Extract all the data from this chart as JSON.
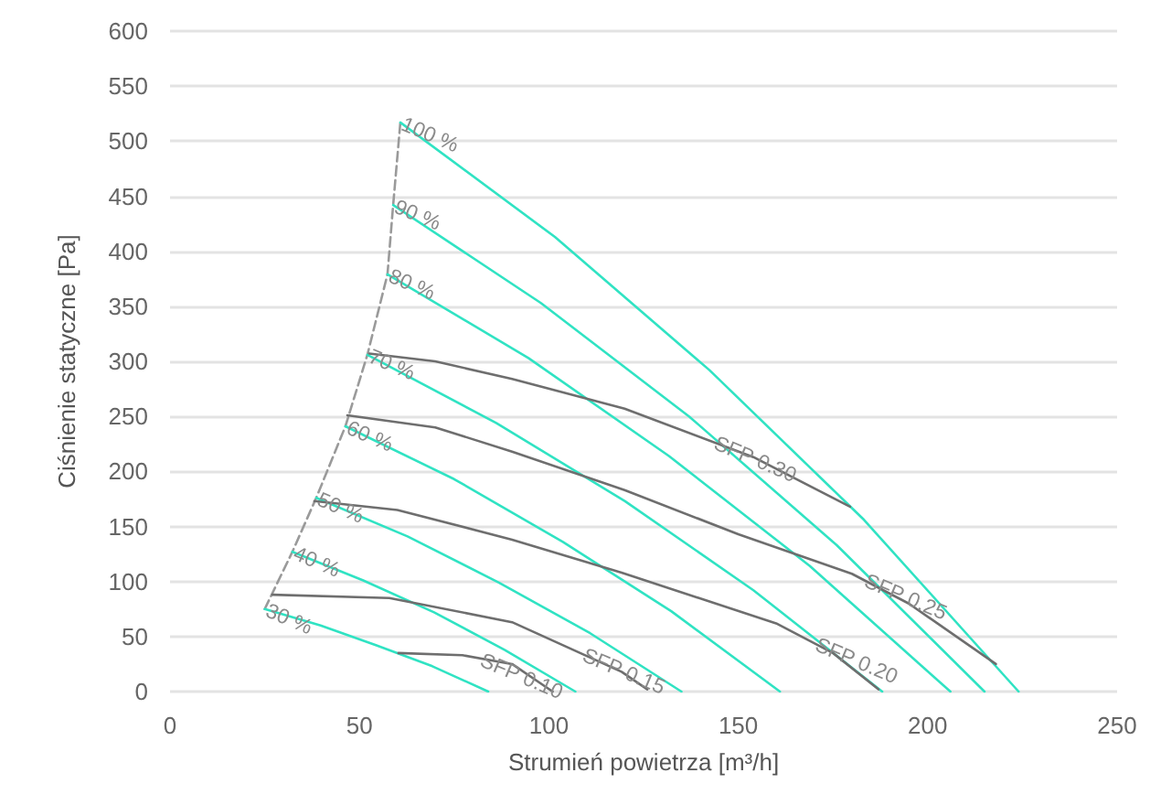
{
  "chart_data": {
    "type": "line",
    "xlabel": "Strumień powietrza [m³/h]",
    "ylabel": "Ciśnienie statyczne [Pa]",
    "xlim": [
      0,
      250
    ],
    "xticks": [
      0,
      50,
      100,
      150,
      200,
      250
    ],
    "ylim": [
      0,
      600
    ],
    "yticks": [
      0,
      50,
      100,
      150,
      200,
      250,
      300,
      350,
      400,
      450,
      500,
      550,
      600
    ],
    "grid": "y",
    "marker": "none",
    "series": [
      {
        "color": "#9a9a9a",
        "line_style": "dashed",
        "x": [
          25,
          32.3,
          38.6,
          46.3,
          52.1,
          57.4,
          58.9,
          60.8
        ],
        "values": [
          75,
          127,
          176,
          241,
          306,
          379,
          442,
          517
        ]
      },
      {
        "color": "#30e3c3",
        "x": [
          25,
          39.75,
          54.5,
          69.25,
          84
        ],
        "values": [
          75,
          60,
          42,
          23,
          0
        ]
      },
      {
        "color": "#30e3c3",
        "x": [
          32.3,
          51,
          69.7,
          88.3,
          107
        ],
        "values": [
          127,
          101,
          72,
          38,
          0
        ]
      },
      {
        "color": "#30e3c3",
        "x": [
          38.6,
          62.7,
          86.8,
          110.9,
          135
        ],
        "values": [
          176,
          141,
          99,
          53,
          0
        ]
      },
      {
        "color": "#30e3c3",
        "x": [
          46.3,
          75,
          103.7,
          132.3,
          161
        ],
        "values": [
          241,
          193,
          136,
          73,
          0
        ]
      },
      {
        "color": "#30e3c3",
        "x": [
          52.1,
          86.1,
          120.1,
          154,
          188
        ],
        "values": [
          306,
          244,
          173,
          92,
          0
        ]
      },
      {
        "color": "#30e3c3",
        "x": [
          57.4,
          94.6,
          131.7,
          168.9,
          206
        ],
        "values": [
          379,
          303,
          214,
          114,
          0
        ]
      },
      {
        "color": "#30e3c3",
        "x": [
          58.9,
          97.9,
          137,
          176,
          215
        ],
        "values": [
          442,
          353,
          250,
          133,
          0
        ]
      },
      {
        "color": "#30e3c3",
        "x": [
          60.8,
          101.6,
          142.4,
          183.2,
          224
        ],
        "values": [
          517,
          413,
          292,
          156,
          0
        ]
      },
      {
        "color": "#6e6e6e",
        "x": [
          60.3,
          77.2,
          90.3,
          101
        ],
        "values": [
          35,
          33,
          25,
          0
        ]
      },
      {
        "color": "#6e6e6e",
        "x": [
          27,
          57.9,
          90.3,
          119.2,
          126
        ],
        "values": [
          88,
          85,
          63,
          18,
          2
        ]
      },
      {
        "color": "#6e6e6e",
        "x": [
          38.1,
          60,
          90.3,
          119.2,
          160,
          175,
          187
        ],
        "values": [
          173,
          165,
          138,
          108,
          62,
          35,
          2
        ]
      },
      {
        "color": "#6e6e6e",
        "x": [
          46.8,
          70,
          90.3,
          120,
          150,
          180,
          195,
          218
        ],
        "values": [
          251,
          240,
          218,
          183,
          143,
          107,
          80,
          25
        ]
      },
      {
        "color": "#6e6e6e",
        "x": [
          52.6,
          70,
          90.3,
          120,
          154,
          179.5
        ],
        "values": [
          307,
          300,
          284,
          257,
          213,
          168
        ]
      }
    ],
    "annotations": [
      {
        "text": "100 %",
        "x": 60.8,
        "y": 517
      },
      {
        "text": "90 %",
        "x": 58.9,
        "y": 442
      },
      {
        "text": "80 %",
        "x": 57.4,
        "y": 379
      },
      {
        "text": "70 %",
        "x": 52.1,
        "y": 306
      },
      {
        "text": "60 %",
        "x": 46.3,
        "y": 241
      },
      {
        "text": "50 %",
        "x": 38.6,
        "y": 176
      },
      {
        "text": "40 %",
        "x": 32.3,
        "y": 127
      },
      {
        "text": "30 %",
        "x": 25,
        "y": 75
      },
      {
        "text": "SFP 0.10",
        "x": 81.6,
        "y": 30
      },
      {
        "text": "SFP 0.15",
        "x": 108.6,
        "y": 34.5
      },
      {
        "text": "SFP 0.20",
        "x": 170,
        "y": 44
      },
      {
        "text": "SFP 0.25",
        "x": 183,
        "y": 102
      },
      {
        "text": "SFP 0.30",
        "x": 143.3,
        "y": 227
      }
    ]
  }
}
